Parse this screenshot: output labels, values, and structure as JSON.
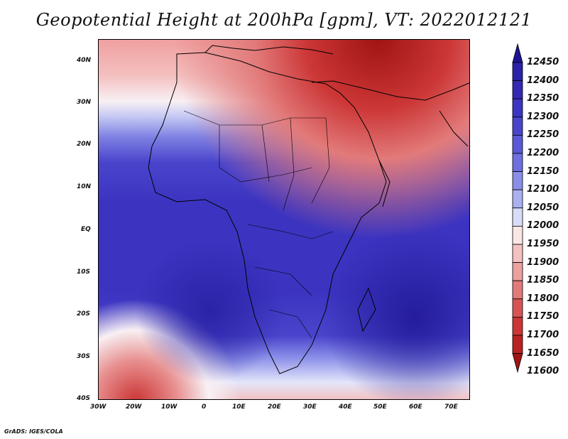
{
  "title": "Geopotential Height at 200hPa [gpm], VT: 2022012121",
  "credit": "GrADS: IGES/COLA",
  "lat_ticks": [
    "40N",
    "30N",
    "20N",
    "10N",
    "EQ",
    "10S",
    "20S",
    "30S",
    "40S"
  ],
  "lon_ticks": [
    "30W",
    "20W",
    "10W",
    "0",
    "10E",
    "20E",
    "30E",
    "40E",
    "50E",
    "60E",
    "70E"
  ],
  "colorbar": {
    "labels": [
      "12450",
      "12400",
      "12350",
      "12300",
      "12250",
      "12200",
      "12150",
      "12100",
      "12050",
      "12000",
      "11950",
      "11900",
      "11850",
      "11800",
      "11750",
      "11700",
      "11650",
      "11600"
    ],
    "colors": [
      "#1e1490",
      "#2a22a6",
      "#3428b4",
      "#3c34c2",
      "#4a44cc",
      "#5a58d6",
      "#6e70e0",
      "#8a8ee8",
      "#aab0f0",
      "#d8dcf8",
      "#fbe6e6",
      "#f4c0c0",
      "#eca0a0",
      "#e27a7a",
      "#d85454",
      "#cc3636",
      "#b82222",
      "#a01414"
    ]
  }
}
